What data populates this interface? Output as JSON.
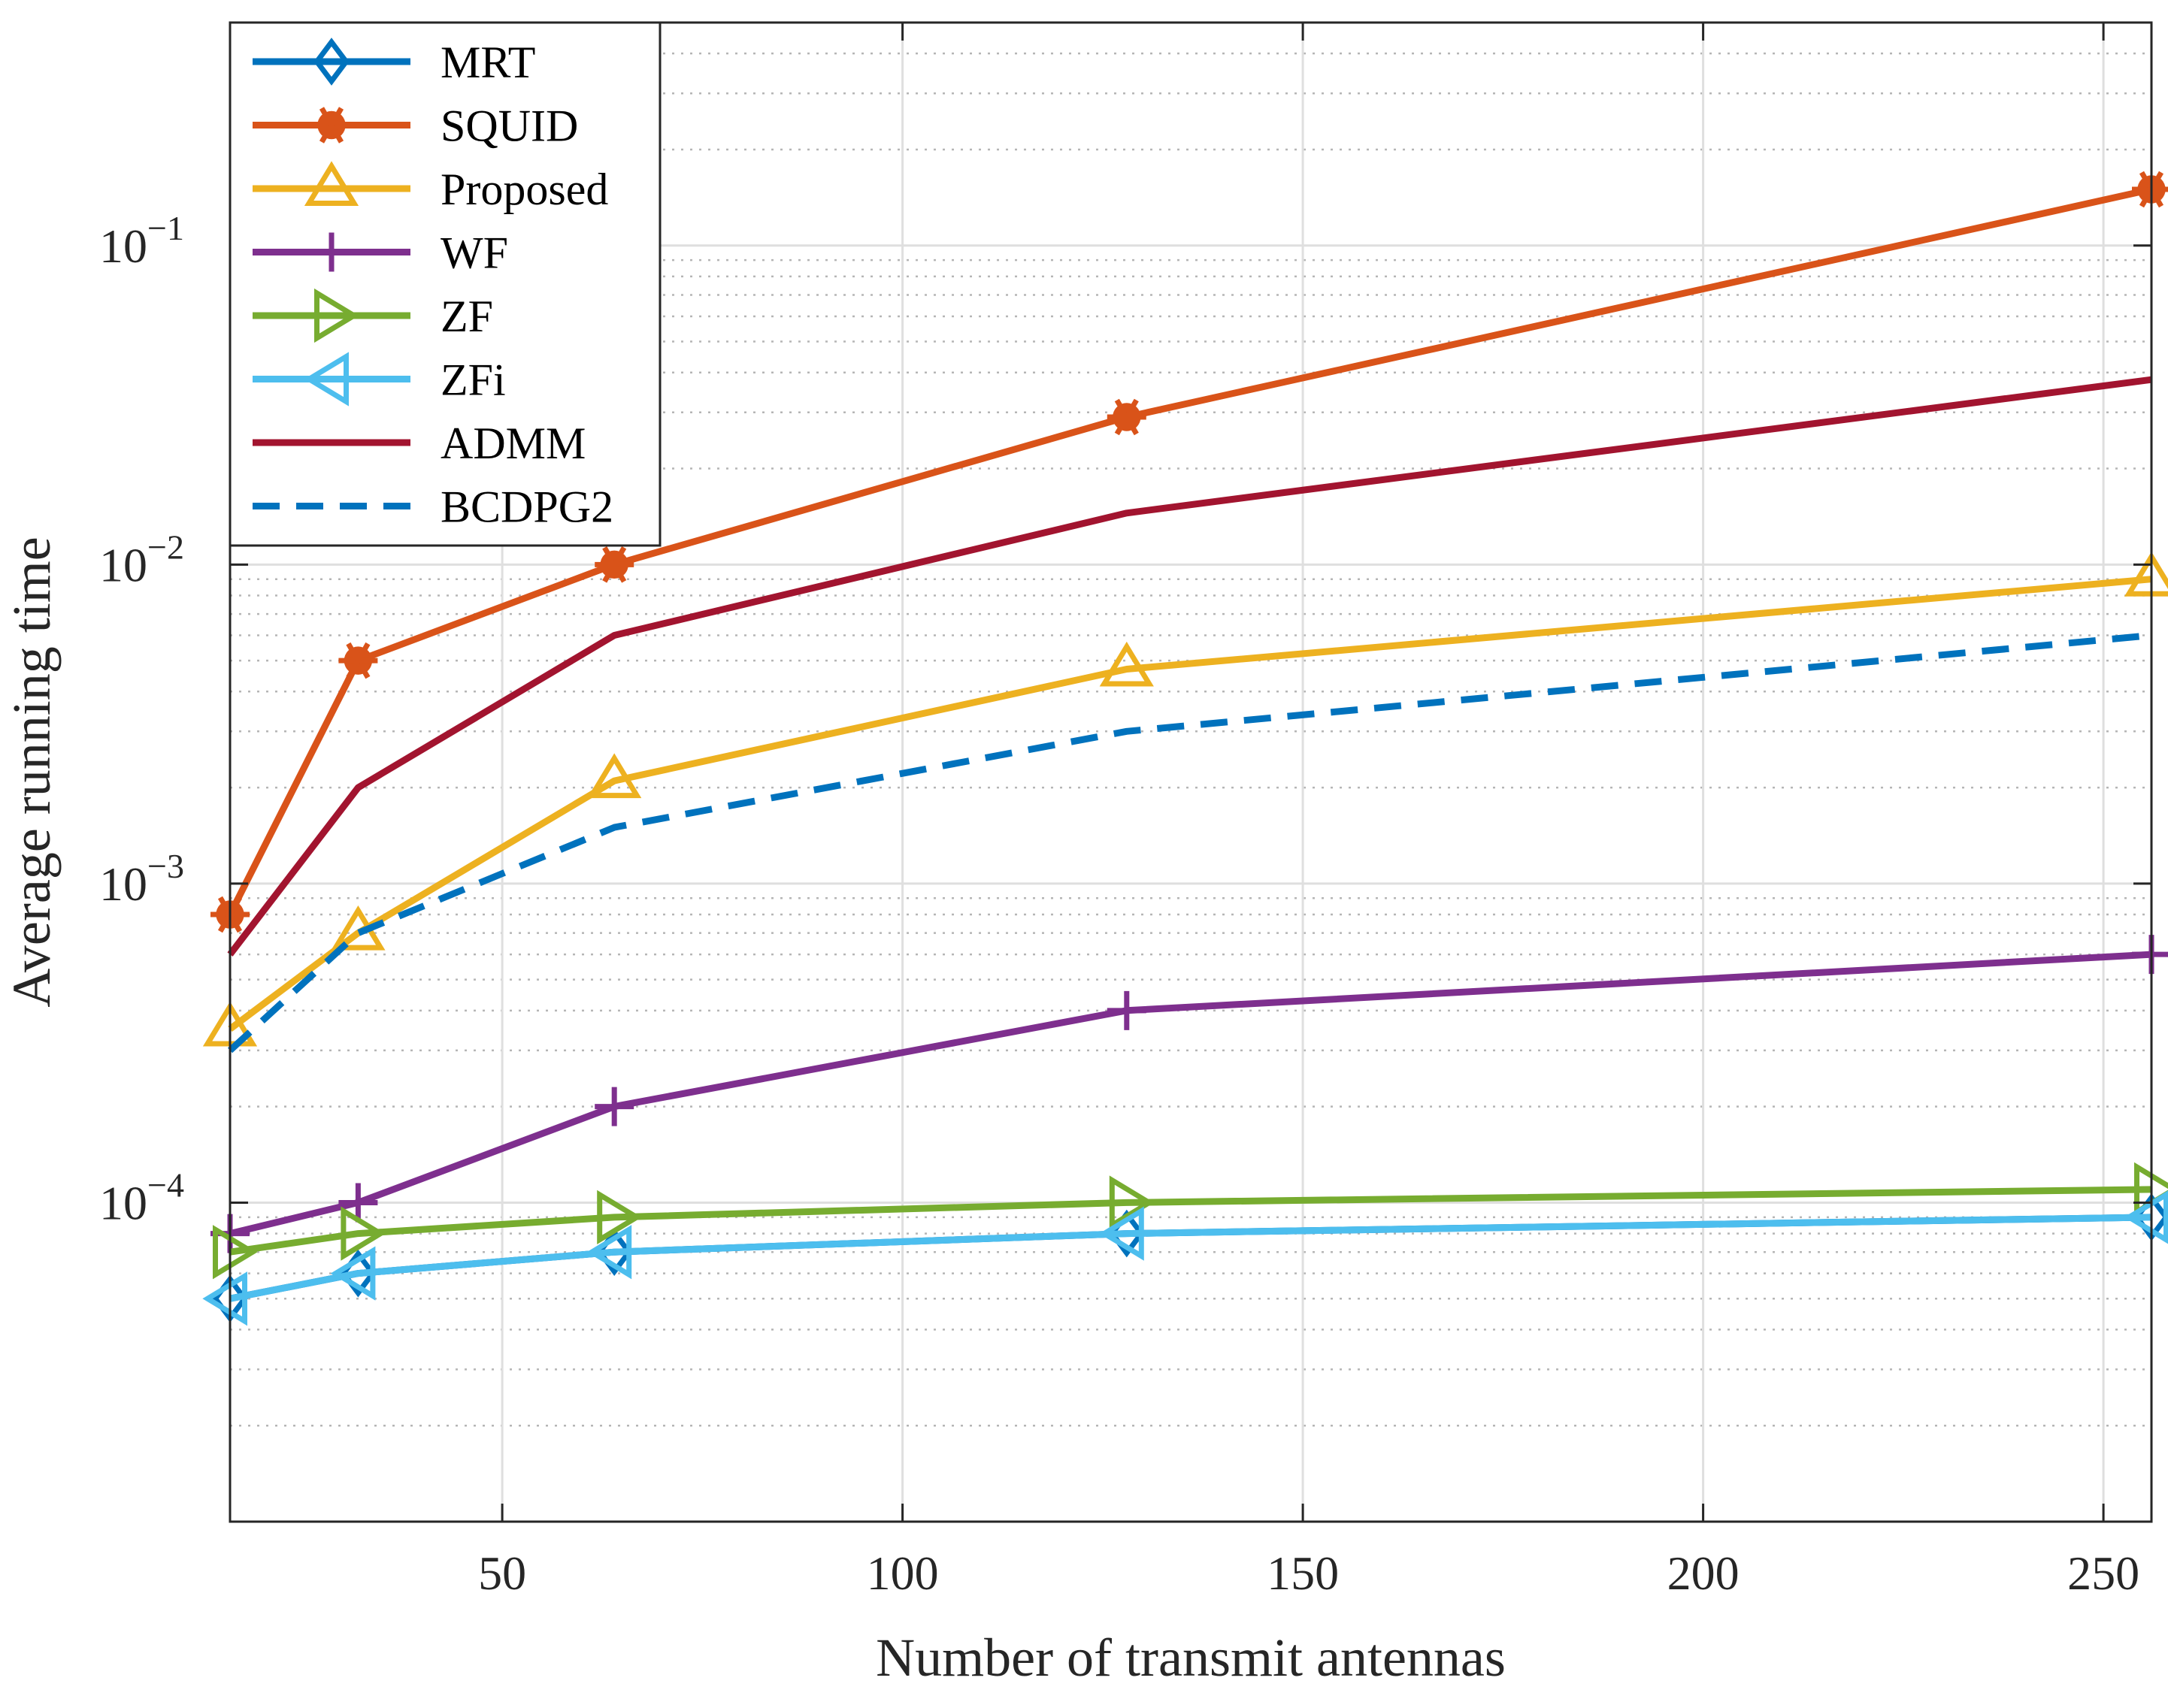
{
  "chart_data": {
    "type": "line",
    "title": "",
    "xlabel": "Number of transmit antennas",
    "ylabel": "Average running time",
    "xscale": "linear",
    "yscale": "log",
    "xlim": [
      16,
      256
    ],
    "ylim": [
      1e-05,
      0.5
    ],
    "xticks": [
      50,
      100,
      150,
      200,
      250
    ],
    "xtick_labels": [
      "50",
      "100",
      "150",
      "200",
      "250"
    ],
    "yticks": [
      0.0001,
      0.001,
      0.01,
      0.1
    ],
    "ytick_labels": [
      {
        "base": "10",
        "exp": "−4"
      },
      {
        "base": "10",
        "exp": "−3"
      },
      {
        "base": "10",
        "exp": "−2"
      },
      {
        "base": "10",
        "exp": "−1"
      }
    ],
    "grid": true,
    "minor_grid": true,
    "legend_position": "top-left",
    "x": [
      16,
      32,
      64,
      128,
      256
    ],
    "series": [
      {
        "name": "MRT",
        "color": "#0072BD",
        "marker": "diamond",
        "dash": "solid",
        "values": [
          5e-05,
          6e-05,
          7e-05,
          8e-05,
          9e-05
        ]
      },
      {
        "name": "SQUID",
        "color": "#D95319",
        "marker": "asterisk",
        "dash": "solid",
        "values": [
          0.0008,
          0.005,
          0.01,
          0.029,
          0.15
        ]
      },
      {
        "name": "Proposed",
        "color": "#EDB120",
        "marker": "triangle-up",
        "dash": "solid",
        "values": [
          0.00035,
          0.0007,
          0.0021,
          0.0047,
          0.009
        ]
      },
      {
        "name": "WF",
        "color": "#7E2F8E",
        "marker": "plus",
        "dash": "solid",
        "values": [
          8e-05,
          0.0001,
          0.0002,
          0.0004,
          0.0006
        ]
      },
      {
        "name": "ZF",
        "color": "#77AC30",
        "marker": "triangle-right",
        "dash": "solid",
        "values": [
          7e-05,
          8e-05,
          9e-05,
          0.0001,
          0.00011
        ]
      },
      {
        "name": "ZFi",
        "color": "#4DBEEE",
        "marker": "triangle-left",
        "dash": "solid",
        "values": [
          5e-05,
          6e-05,
          7e-05,
          8e-05,
          9e-05
        ]
      },
      {
        "name": "ADMM",
        "color": "#A2142F",
        "marker": "none",
        "dash": "solid",
        "values": [
          0.0006,
          0.002,
          0.006,
          0.0145,
          0.038
        ]
      },
      {
        "name": "BCDPG2",
        "color": "#0072BD",
        "marker": "none",
        "dash": "dashed",
        "values": [
          0.0003,
          0.0007,
          0.0015,
          0.003,
          0.006
        ]
      }
    ]
  }
}
